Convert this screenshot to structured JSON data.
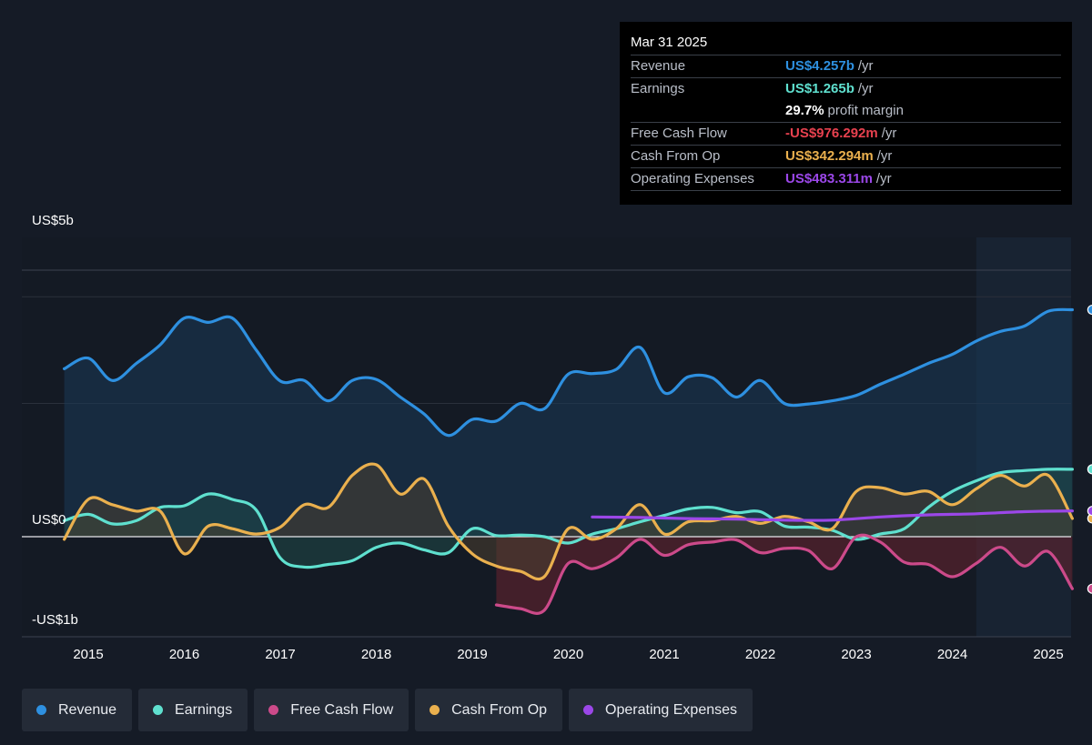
{
  "tooltip": {
    "date": "Mar 31 2025",
    "rows": [
      {
        "label": "Revenue",
        "value": "US$4.257b",
        "suffix": "/yr",
        "color": "#2e90e0"
      },
      {
        "label": "Earnings",
        "value": "US$1.265b",
        "suffix": "/yr",
        "color": "#5fe0cf"
      },
      {
        "label": "",
        "value": "29.7%",
        "suffix": "profit margin",
        "color": "#ffffff"
      },
      {
        "label": "Free Cash Flow",
        "value": "-US$976.292m",
        "suffix": "/yr",
        "color": "#e8414f"
      },
      {
        "label": "Cash From Op",
        "value": "US$342.294m",
        "suffix": "/yr",
        "color": "#eab04e"
      },
      {
        "label": "Operating Expenses",
        "value": "US$483.311m",
        "suffix": "/yr",
        "color": "#9b47e8"
      }
    ]
  },
  "legend": [
    {
      "label": "Revenue",
      "color": "#2e90e0"
    },
    {
      "label": "Earnings",
      "color": "#5fe0cf"
    },
    {
      "label": "Free Cash Flow",
      "color": "#cc4a8a"
    },
    {
      "label": "Cash From Op",
      "color": "#eab04e"
    },
    {
      "label": "Operating Expenses",
      "color": "#9b47e8"
    }
  ],
  "chart_data": {
    "type": "line",
    "ylabels": [
      "US$5b",
      "US$0",
      "-US$1b"
    ],
    "ylim": [
      -1.5,
      4.5
    ],
    "xlim": [
      2014.45,
      2025.25
    ],
    "x_ticks": [
      "2015",
      "2016",
      "2017",
      "2018",
      "2019",
      "2020",
      "2021",
      "2022",
      "2023",
      "2024",
      "2025"
    ],
    "series": [
      {
        "name": "Revenue",
        "color": "#2e90e0",
        "fill": true,
        "points": [
          [
            2014.75,
            3.15
          ],
          [
            2015.0,
            3.35
          ],
          [
            2015.25,
            2.93
          ],
          [
            2015.5,
            3.25
          ],
          [
            2015.75,
            3.6
          ],
          [
            2016.0,
            4.1
          ],
          [
            2016.25,
            4.02
          ],
          [
            2016.5,
            4.1
          ],
          [
            2016.75,
            3.5
          ],
          [
            2017.0,
            2.92
          ],
          [
            2017.25,
            2.93
          ],
          [
            2017.5,
            2.55
          ],
          [
            2017.75,
            2.93
          ],
          [
            2018.0,
            2.95
          ],
          [
            2018.25,
            2.62
          ],
          [
            2018.5,
            2.3
          ],
          [
            2018.75,
            1.9
          ],
          [
            2019.0,
            2.2
          ],
          [
            2019.25,
            2.17
          ],
          [
            2019.5,
            2.5
          ],
          [
            2019.75,
            2.4
          ],
          [
            2020.0,
            3.05
          ],
          [
            2020.25,
            3.06
          ],
          [
            2020.5,
            3.14
          ],
          [
            2020.75,
            3.55
          ],
          [
            2021.0,
            2.7
          ],
          [
            2021.25,
            3.0
          ],
          [
            2021.5,
            2.98
          ],
          [
            2021.75,
            2.62
          ],
          [
            2022.0,
            2.93
          ],
          [
            2022.25,
            2.5
          ],
          [
            2022.5,
            2.49
          ],
          [
            2022.75,
            2.55
          ],
          [
            2023.0,
            2.65
          ],
          [
            2023.25,
            2.86
          ],
          [
            2023.5,
            3.05
          ],
          [
            2023.75,
            3.25
          ],
          [
            2024.0,
            3.42
          ],
          [
            2024.25,
            3.67
          ],
          [
            2024.5,
            3.85
          ],
          [
            2024.75,
            3.95
          ],
          [
            2025.0,
            4.23
          ],
          [
            2025.25,
            4.257
          ]
        ]
      },
      {
        "name": "Earnings",
        "color": "#5fe0cf",
        "fill": true,
        "points": [
          [
            2014.75,
            0.3
          ],
          [
            2015.0,
            0.42
          ],
          [
            2015.25,
            0.24
          ],
          [
            2015.5,
            0.3
          ],
          [
            2015.75,
            0.55
          ],
          [
            2016.0,
            0.58
          ],
          [
            2016.25,
            0.8
          ],
          [
            2016.5,
            0.7
          ],
          [
            2016.75,
            0.5
          ],
          [
            2017.0,
            -0.4
          ],
          [
            2017.25,
            -0.57
          ],
          [
            2017.5,
            -0.52
          ],
          [
            2017.75,
            -0.45
          ],
          [
            2018.0,
            -0.2
          ],
          [
            2018.25,
            -0.12
          ],
          [
            2018.5,
            -0.25
          ],
          [
            2018.75,
            -0.3
          ],
          [
            2019.0,
            0.15
          ],
          [
            2019.25,
            0.02
          ],
          [
            2019.5,
            0.03
          ],
          [
            2019.75,
            0.0
          ],
          [
            2020.0,
            -0.12
          ],
          [
            2020.25,
            0.05
          ],
          [
            2020.5,
            0.15
          ],
          [
            2020.75,
            0.28
          ],
          [
            2021.0,
            0.4
          ],
          [
            2021.25,
            0.52
          ],
          [
            2021.5,
            0.55
          ],
          [
            2021.75,
            0.45
          ],
          [
            2022.0,
            0.47
          ],
          [
            2022.25,
            0.2
          ],
          [
            2022.5,
            0.18
          ],
          [
            2022.75,
            0.12
          ],
          [
            2023.0,
            -0.05
          ],
          [
            2023.25,
            0.05
          ],
          [
            2023.5,
            0.15
          ],
          [
            2023.75,
            0.55
          ],
          [
            2024.0,
            0.85
          ],
          [
            2024.25,
            1.05
          ],
          [
            2024.5,
            1.2
          ],
          [
            2024.75,
            1.24
          ],
          [
            2025.0,
            1.265
          ],
          [
            2025.25,
            1.265
          ]
        ]
      },
      {
        "name": "Free Cash Flow",
        "color": "#cc4a8a",
        "fill": true,
        "points": [
          [
            2019.25,
            -1.28
          ],
          [
            2019.5,
            -1.35
          ],
          [
            2019.75,
            -1.38
          ],
          [
            2020.0,
            -0.5
          ],
          [
            2020.25,
            -0.6
          ],
          [
            2020.5,
            -0.4
          ],
          [
            2020.75,
            -0.05
          ],
          [
            2021.0,
            -0.35
          ],
          [
            2021.25,
            -0.15
          ],
          [
            2021.5,
            -0.1
          ],
          [
            2021.75,
            -0.06
          ],
          [
            2022.0,
            -0.3
          ],
          [
            2022.25,
            -0.22
          ],
          [
            2022.5,
            -0.26
          ],
          [
            2022.75,
            -0.6
          ],
          [
            2023.0,
            0.0
          ],
          [
            2023.25,
            -0.1
          ],
          [
            2023.5,
            -0.48
          ],
          [
            2023.75,
            -0.52
          ],
          [
            2024.0,
            -0.75
          ],
          [
            2024.25,
            -0.5
          ],
          [
            2024.5,
            -0.2
          ],
          [
            2024.75,
            -0.55
          ],
          [
            2025.0,
            -0.28
          ],
          [
            2025.25,
            -0.976
          ]
        ]
      },
      {
        "name": "Cash From Op",
        "color": "#eab04e",
        "fill": true,
        "points": [
          [
            2014.75,
            -0.05
          ],
          [
            2015.0,
            0.7
          ],
          [
            2015.25,
            0.6
          ],
          [
            2015.5,
            0.48
          ],
          [
            2015.75,
            0.48
          ],
          [
            2016.0,
            -0.32
          ],
          [
            2016.25,
            0.2
          ],
          [
            2016.5,
            0.15
          ],
          [
            2016.75,
            0.05
          ],
          [
            2017.0,
            0.18
          ],
          [
            2017.25,
            0.6
          ],
          [
            2017.5,
            0.55
          ],
          [
            2017.75,
            1.15
          ],
          [
            2018.0,
            1.35
          ],
          [
            2018.25,
            0.8
          ],
          [
            2018.5,
            1.08
          ],
          [
            2018.75,
            0.2
          ],
          [
            2019.0,
            -0.32
          ],
          [
            2019.25,
            -0.55
          ],
          [
            2019.5,
            -0.65
          ],
          [
            2019.75,
            -0.75
          ],
          [
            2020.0,
            0.15
          ],
          [
            2020.25,
            -0.05
          ],
          [
            2020.5,
            0.15
          ],
          [
            2020.75,
            0.6
          ],
          [
            2021.0,
            0.05
          ],
          [
            2021.25,
            0.28
          ],
          [
            2021.5,
            0.3
          ],
          [
            2021.75,
            0.38
          ],
          [
            2022.0,
            0.25
          ],
          [
            2022.25,
            0.38
          ],
          [
            2022.5,
            0.28
          ],
          [
            2022.75,
            0.15
          ],
          [
            2023.0,
            0.85
          ],
          [
            2023.25,
            0.92
          ],
          [
            2023.5,
            0.8
          ],
          [
            2023.75,
            0.85
          ],
          [
            2024.0,
            0.6
          ],
          [
            2024.25,
            0.9
          ],
          [
            2024.5,
            1.15
          ],
          [
            2024.75,
            0.95
          ],
          [
            2025.0,
            1.15
          ],
          [
            2025.25,
            0.342
          ]
        ]
      },
      {
        "name": "Operating Expenses",
        "color": "#9b47e8",
        "fill": false,
        "points": [
          [
            2020.25,
            0.37
          ],
          [
            2020.75,
            0.36
          ],
          [
            2021.25,
            0.34
          ],
          [
            2021.75,
            0.33
          ],
          [
            2022.25,
            0.31
          ],
          [
            2022.75,
            0.31
          ],
          [
            2023.25,
            0.37
          ],
          [
            2023.75,
            0.41
          ],
          [
            2024.25,
            0.43
          ],
          [
            2024.75,
            0.47
          ],
          [
            2025.25,
            0.483
          ]
        ]
      }
    ]
  }
}
